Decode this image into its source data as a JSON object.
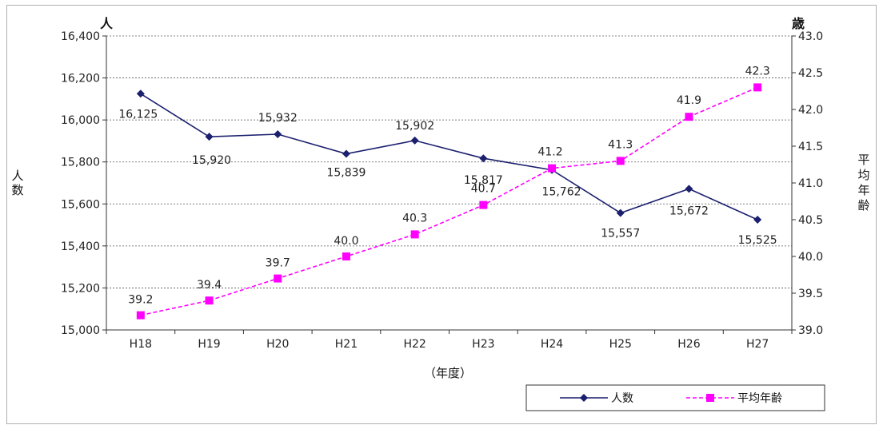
{
  "chart_data": {
    "type": "line",
    "categories": [
      "H18",
      "H19",
      "H20",
      "H21",
      "H22",
      "H23",
      "H24",
      "H25",
      "H26",
      "H27"
    ],
    "xlabel": "（年度）",
    "left_axis": {
      "unit": "人",
      "label": "人数",
      "range": [
        15000,
        16400
      ],
      "ticks": [
        15000,
        15200,
        15400,
        15600,
        15800,
        16000,
        16200,
        16400
      ],
      "tick_labels": [
        "15,000",
        "15,200",
        "15,400",
        "15,600",
        "15,800",
        "16,000",
        "16,200",
        "16,400"
      ]
    },
    "right_axis": {
      "unit": "歳",
      "label": "平均年齢",
      "range": [
        39.0,
        43.0
      ],
      "ticks": [
        39.0,
        39.5,
        40.0,
        40.5,
        41.0,
        41.5,
        42.0,
        42.5,
        43.0
      ],
      "tick_labels": [
        "39.0",
        "39.5",
        "40.0",
        "40.5",
        "41.0",
        "41.5",
        "42.0",
        "42.5",
        "43.0"
      ]
    },
    "grid": true,
    "legend_position": "bottom-right",
    "series": [
      {
        "name": "人数",
        "axis": "left",
        "color": "#1a1f6e",
        "marker": "diamond",
        "line_style": "solid",
        "values": [
          16125,
          15920,
          15932,
          15839,
          15902,
          15817,
          15762,
          15557,
          15672,
          15525
        ],
        "labels": [
          "16,125",
          "15,920",
          "15,932",
          "15,839",
          "15,902",
          "15,817",
          "15,762",
          "15,557",
          "15,672",
          "15,525"
        ]
      },
      {
        "name": "平均年齢",
        "axis": "right",
        "color": "#ff00ff",
        "marker": "square",
        "line_style": "dashed",
        "values": [
          39.2,
          39.4,
          39.7,
          40.0,
          40.3,
          40.7,
          41.2,
          41.3,
          41.9,
          42.3
        ],
        "labels": [
          "39.2",
          "39.4",
          "39.7",
          "40.0",
          "40.3",
          "40.7",
          "41.2",
          "41.3",
          "41.9",
          "42.3"
        ]
      }
    ]
  }
}
